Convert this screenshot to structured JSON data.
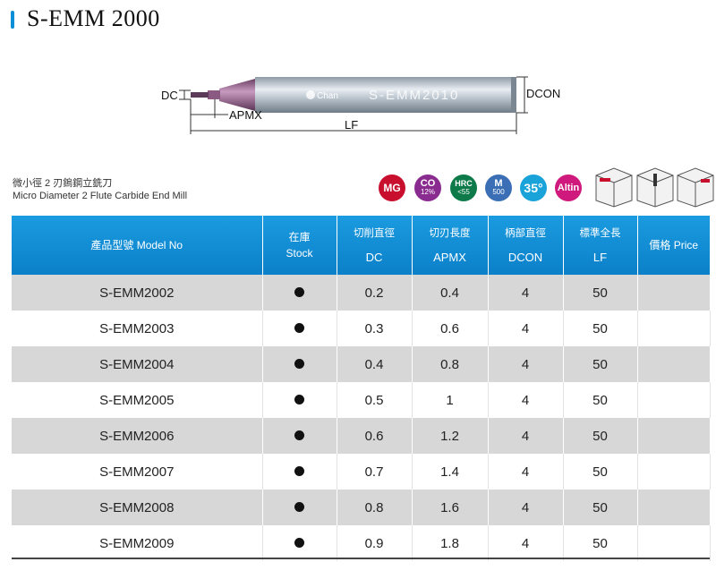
{
  "title": "S-EMM 2000",
  "diagram": {
    "labels": {
      "dc": "DC",
      "apmx": "APMX",
      "lf": "LF",
      "dcon": "DCON"
    },
    "shank_marking": "S-EMM2010",
    "brand": "Chan"
  },
  "subtitle": {
    "zh": "微小徑 2 刃鎢鋼立銑刀",
    "en": "Micro Diameter 2 Flute Carbide End Mill"
  },
  "badges": [
    {
      "label": "MG",
      "color": "#c8102e"
    },
    {
      "label": "CO",
      "sub": "12%",
      "color": "#8a2b8f"
    },
    {
      "label": "HRC",
      "sub": "<55",
      "color": "#0e7a4a"
    },
    {
      "label": "M",
      "sub": "500",
      "color": "#3a6fb5"
    },
    {
      "label": "35°",
      "color": "#1aa3d9"
    },
    {
      "label": "Altin",
      "color": "#d0197c"
    }
  ],
  "table": {
    "headers": {
      "model": "產品型號 Model No",
      "stock_zh": "在庫",
      "stock_en": "Stock",
      "dc_zh": "切削直徑",
      "dc_en": "DC",
      "apmx_zh": "切刃長度",
      "apmx_en": "APMX",
      "dcon_zh": "柄部直徑",
      "dcon_en": "DCON",
      "lf_zh": "標準全長",
      "lf_en": "LF",
      "price": "價格 Price"
    },
    "rows": [
      {
        "model": "S-EMM2002",
        "stock": true,
        "dc": "0.2",
        "apmx": "0.4",
        "dcon": "4",
        "lf": "50",
        "price": ""
      },
      {
        "model": "S-EMM2003",
        "stock": true,
        "dc": "0.3",
        "apmx": "0.6",
        "dcon": "4",
        "lf": "50",
        "price": ""
      },
      {
        "model": "S-EMM2004",
        "stock": true,
        "dc": "0.4",
        "apmx": "0.8",
        "dcon": "4",
        "lf": "50",
        "price": ""
      },
      {
        "model": "S-EMM2005",
        "stock": true,
        "dc": "0.5",
        "apmx": "1",
        "dcon": "4",
        "lf": "50",
        "price": ""
      },
      {
        "model": "S-EMM2006",
        "stock": true,
        "dc": "0.6",
        "apmx": "1.2",
        "dcon": "4",
        "lf": "50",
        "price": ""
      },
      {
        "model": "S-EMM2007",
        "stock": true,
        "dc": "0.7",
        "apmx": "1.4",
        "dcon": "4",
        "lf": "50",
        "price": ""
      },
      {
        "model": "S-EMM2008",
        "stock": true,
        "dc": "0.8",
        "apmx": "1.6",
        "dcon": "4",
        "lf": "50",
        "price": ""
      },
      {
        "model": "S-EMM2009",
        "stock": true,
        "dc": "0.9",
        "apmx": "1.8",
        "dcon": "4",
        "lf": "50",
        "price": ""
      }
    ]
  }
}
